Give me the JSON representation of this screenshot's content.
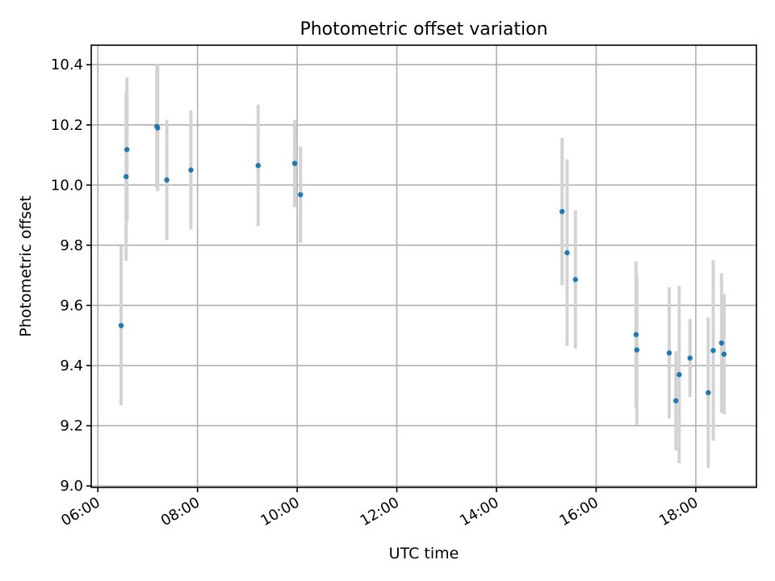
{
  "chart_data": {
    "type": "scatter",
    "title": "Photometric offset variation",
    "xlabel": "UTC time",
    "ylabel": "Photometric offset",
    "xlim": [
      "05:52",
      "19:13"
    ],
    "ylim": [
      8.995,
      10.465
    ],
    "x_ticks": [
      "06:00",
      "08:00",
      "10:00",
      "12:00",
      "14:00",
      "16:00",
      "18:00"
    ],
    "y_ticks": [
      "9.0",
      "9.2",
      "9.4",
      "9.6",
      "9.8",
      "10.0",
      "10.2",
      "10.4"
    ],
    "grid": true,
    "legend": "none",
    "marker_color": "#1f77b4",
    "errorbar_color": "#d3d3d3",
    "points": [
      {
        "x": "06:28",
        "y": 9.533,
        "err": 0.265
      },
      {
        "x": "06:34",
        "y": 10.028,
        "err": 0.28
      },
      {
        "x": "06:35",
        "y": 10.118,
        "err": 0.24
      },
      {
        "x": "07:11",
        "y": 10.195,
        "err": 0.205
      },
      {
        "x": "07:12",
        "y": 10.19,
        "err": 0.21
      },
      {
        "x": "07:23",
        "y": 10.017,
        "err": 0.2
      },
      {
        "x": "07:52",
        "y": 10.05,
        "err": 0.198
      },
      {
        "x": "09:13",
        "y": 10.065,
        "err": 0.202
      },
      {
        "x": "09:57",
        "y": 10.072,
        "err": 0.145
      },
      {
        "x": "10:04",
        "y": 9.968,
        "err": 0.16
      },
      {
        "x": "15:19",
        "y": 9.912,
        "err": 0.245
      },
      {
        "x": "15:25",
        "y": 9.775,
        "err": 0.31
      },
      {
        "x": "15:35",
        "y": 9.686,
        "err": 0.23
      },
      {
        "x": "16:48",
        "y": 9.503,
        "err": 0.243
      },
      {
        "x": "16:49",
        "y": 9.452,
        "err": 0.25
      },
      {
        "x": "17:28",
        "y": 9.442,
        "err": 0.218
      },
      {
        "x": "17:36",
        "y": 9.283,
        "err": 0.165
      },
      {
        "x": "17:40",
        "y": 9.37,
        "err": 0.295
      },
      {
        "x": "17:53",
        "y": 9.425,
        "err": 0.13
      },
      {
        "x": "18:15",
        "y": 9.31,
        "err": 0.25
      },
      {
        "x": "18:21",
        "y": 9.45,
        "err": 0.3
      },
      {
        "x": "18:31",
        "y": 9.475,
        "err": 0.232
      },
      {
        "x": "18:34",
        "y": 9.438,
        "err": 0.2
      }
    ]
  }
}
